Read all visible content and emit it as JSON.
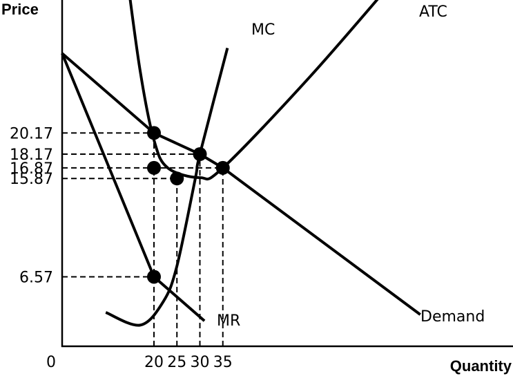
{
  "chart_data": {
    "type": "line",
    "title": "",
    "xlabel": "Quantity",
    "ylabel": "Price",
    "origin_label": "0",
    "x_ticks": [
      {
        "value": 20,
        "label": "20"
      },
      {
        "value": 25,
        "label": "25"
      },
      {
        "value": 30,
        "label": "30"
      },
      {
        "value": 35,
        "label": "35"
      }
    ],
    "y_ticks": [
      {
        "value": 20.17,
        "label": "20.17"
      },
      {
        "value": 18.17,
        "label": "18.17"
      },
      {
        "value": 16.87,
        "label": "16.87"
      },
      {
        "value": 15.87,
        "label": "15.87"
      },
      {
        "value": 6.57,
        "label": "6.57"
      }
    ],
    "xlim": [
      0,
      100
    ],
    "ylim": [
      0,
      31
    ],
    "grid": false,
    "series": [
      {
        "name": "Demand",
        "points": [
          [
            0,
            27.7
          ],
          [
            20,
            20.17
          ],
          [
            30,
            18.17
          ],
          [
            35,
            16.87
          ],
          [
            78,
            3.0
          ]
        ]
      },
      {
        "name": "MR",
        "points": [
          [
            0,
            27.7
          ],
          [
            20,
            6.57
          ],
          [
            31,
            2.4
          ]
        ]
      },
      {
        "name": "MC",
        "points": [
          [
            9.5,
            3.2
          ],
          [
            17,
            2.0
          ],
          [
            22,
            4.2
          ],
          [
            25,
            7.6
          ],
          [
            29,
            15.87
          ],
          [
            30,
            18.17
          ],
          [
            36,
            28.2
          ]
        ]
      },
      {
        "name": "ATC",
        "points": [
          [
            14,
            35.5
          ],
          [
            17,
            26.0
          ],
          [
            20,
            19.5
          ],
          [
            23,
            16.87
          ],
          [
            30,
            15.95
          ],
          [
            35,
            16.87
          ],
          [
            54,
            25.5
          ],
          [
            73,
            35.0
          ]
        ]
      }
    ],
    "marked_points": [
      {
        "x": 20,
        "y": 20.17
      },
      {
        "x": 30,
        "y": 18.17
      },
      {
        "x": 20,
        "y": 16.87
      },
      {
        "x": 35,
        "y": 16.87
      },
      {
        "x": 25,
        "y": 15.87
      },
      {
        "x": 20,
        "y": 6.57
      }
    ],
    "guide_lines": [
      {
        "y": 20.17,
        "x_end": 20
      },
      {
        "y": 18.17,
        "x_end": 30
      },
      {
        "y": 16.87,
        "x_end": 35
      },
      {
        "y": 15.87,
        "x_end": 25
      },
      {
        "y": 6.57,
        "x_end": 20
      },
      {
        "x": 20,
        "y_top": 20.17
      },
      {
        "x": 25,
        "y_top": 15.87
      },
      {
        "x": 30,
        "y_top": 18.17
      },
      {
        "x": 35,
        "y_top": 16.87
      }
    ]
  }
}
